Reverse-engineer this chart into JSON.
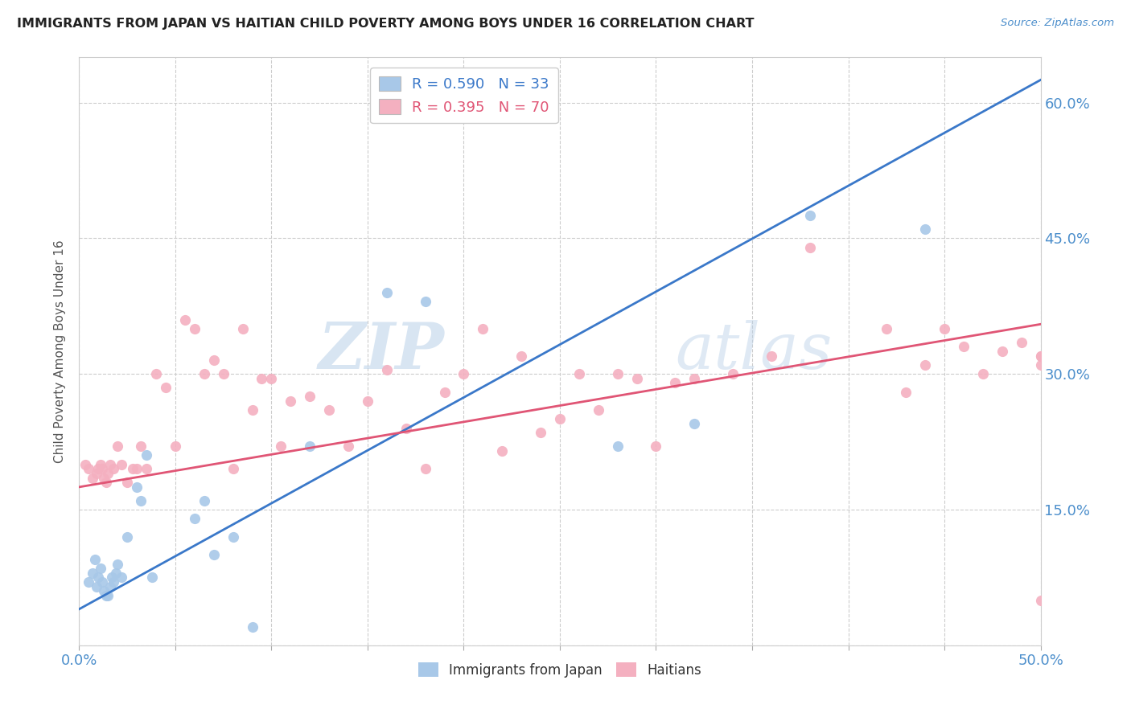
{
  "title": "IMMIGRANTS FROM JAPAN VS HAITIAN CHILD POVERTY AMONG BOYS UNDER 16 CORRELATION CHART",
  "source": "Source: ZipAtlas.com",
  "ylabel": "Child Poverty Among Boys Under 16",
  "xmin": 0.0,
  "xmax": 0.5,
  "ymin": 0.0,
  "ymax": 0.65,
  "yticks": [
    0.0,
    0.15,
    0.3,
    0.45,
    0.6
  ],
  "ytick_labels": [
    "",
    "15.0%",
    "30.0%",
    "45.0%",
    "60.0%"
  ],
  "legend_blue_r": "R = 0.590",
  "legend_blue_n": "N = 33",
  "legend_pink_r": "R = 0.395",
  "legend_pink_n": "N = 70",
  "blue_color": "#a8c8e8",
  "pink_color": "#f4b0c0",
  "blue_line_color": "#3a78c9",
  "pink_line_color": "#e05575",
  "title_color": "#222222",
  "axis_color": "#4d8fcc",
  "grid_color": "#cccccc",
  "watermark_zip": "ZIP",
  "watermark_atlas": "atlas",
  "blue_line_x0": 0.0,
  "blue_line_y0": 0.04,
  "blue_line_x1": 0.5,
  "blue_line_y1": 0.625,
  "pink_line_x0": 0.0,
  "pink_line_y0": 0.175,
  "pink_line_x1": 0.5,
  "pink_line_y1": 0.355,
  "blue_scatter_x": [
    0.005,
    0.007,
    0.008,
    0.009,
    0.01,
    0.011,
    0.012,
    0.013,
    0.014,
    0.015,
    0.016,
    0.017,
    0.018,
    0.019,
    0.02,
    0.022,
    0.025,
    0.03,
    0.032,
    0.035,
    0.038,
    0.06,
    0.065,
    0.07,
    0.08,
    0.09,
    0.12,
    0.16,
    0.18,
    0.28,
    0.32,
    0.38,
    0.44
  ],
  "blue_scatter_y": [
    0.07,
    0.08,
    0.095,
    0.065,
    0.075,
    0.085,
    0.07,
    0.06,
    0.055,
    0.055,
    0.065,
    0.075,
    0.07,
    0.08,
    0.09,
    0.075,
    0.12,
    0.175,
    0.16,
    0.21,
    0.075,
    0.14,
    0.16,
    0.1,
    0.12,
    0.02,
    0.22,
    0.39,
    0.38,
    0.22,
    0.245,
    0.475,
    0.46
  ],
  "pink_scatter_x": [
    0.003,
    0.005,
    0.007,
    0.009,
    0.01,
    0.011,
    0.012,
    0.013,
    0.014,
    0.015,
    0.016,
    0.018,
    0.02,
    0.022,
    0.025,
    0.028,
    0.03,
    0.032,
    0.035,
    0.04,
    0.045,
    0.05,
    0.055,
    0.06,
    0.065,
    0.07,
    0.075,
    0.08,
    0.085,
    0.09,
    0.095,
    0.1,
    0.105,
    0.11,
    0.12,
    0.13,
    0.14,
    0.15,
    0.16,
    0.17,
    0.18,
    0.19,
    0.2,
    0.21,
    0.22,
    0.23,
    0.24,
    0.25,
    0.26,
    0.27,
    0.28,
    0.29,
    0.3,
    0.31,
    0.32,
    0.34,
    0.36,
    0.38,
    0.42,
    0.43,
    0.44,
    0.45,
    0.46,
    0.47,
    0.48,
    0.49,
    0.5,
    0.5,
    0.5,
    0.5
  ],
  "pink_scatter_y": [
    0.2,
    0.195,
    0.185,
    0.19,
    0.195,
    0.2,
    0.195,
    0.185,
    0.18,
    0.19,
    0.2,
    0.195,
    0.22,
    0.2,
    0.18,
    0.195,
    0.195,
    0.22,
    0.195,
    0.3,
    0.285,
    0.22,
    0.36,
    0.35,
    0.3,
    0.315,
    0.3,
    0.195,
    0.35,
    0.26,
    0.295,
    0.295,
    0.22,
    0.27,
    0.275,
    0.26,
    0.22,
    0.27,
    0.305,
    0.24,
    0.195,
    0.28,
    0.3,
    0.35,
    0.215,
    0.32,
    0.235,
    0.25,
    0.3,
    0.26,
    0.3,
    0.295,
    0.22,
    0.29,
    0.295,
    0.3,
    0.32,
    0.44,
    0.35,
    0.28,
    0.31,
    0.35,
    0.33,
    0.3,
    0.325,
    0.335,
    0.05,
    0.32,
    0.31,
    0.32
  ]
}
